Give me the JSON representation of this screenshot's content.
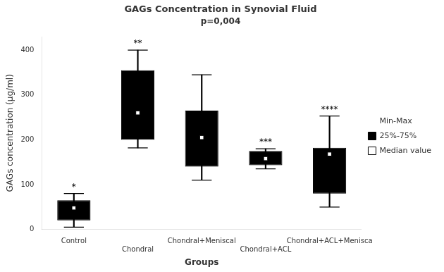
{
  "chart_data": {
    "type": "box",
    "title": "GAGs Concentration in Synovial Fluid",
    "subtitle": "p=0,004",
    "xlabel": "Groups",
    "ylabel": "GAGs concentration (μg/ml)",
    "categories": [
      "Control",
      "Chondral",
      "Chondral+Meniscal",
      "Chondral+ACL",
      "Chondral+ACL+Menisca"
    ],
    "series": [
      {
        "name": "Min-Max",
        "type": "whisker",
        "color": "#000000",
        "low": [
          5,
          182,
          110,
          135,
          50
        ],
        "high": [
          80,
          400,
          345,
          180,
          253
        ]
      },
      {
        "name": "25%-75%",
        "type": "box",
        "color": "#000000",
        "low": [
          20,
          200,
          140,
          143,
          80
        ],
        "high": [
          65,
          355,
          265,
          175,
          182
        ]
      },
      {
        "name": "Median value",
        "type": "marker",
        "marker": "square",
        "color": "#ffffff",
        "values": [
          48,
          260,
          205,
          158,
          168
        ]
      }
    ],
    "annotations": [
      "*",
      "**",
      null,
      "***",
      "****"
    ],
    "ylim": [
      0,
      430
    ],
    "yticks": [
      0,
      100,
      200,
      300,
      400
    ],
    "grid": false,
    "legend": "right"
  }
}
